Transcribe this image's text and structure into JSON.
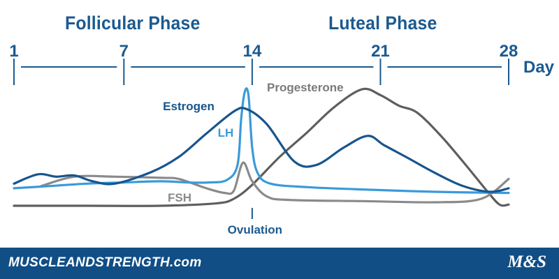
{
  "header": {
    "phase_left": "Follicular Phase",
    "phase_right": "Luteal Phase"
  },
  "chart_data": {
    "type": "line",
    "title": "",
    "xlabel": "Day",
    "ylabel": "",
    "xlim": [
      1,
      28
    ],
    "x_ticks": [
      1,
      7,
      14,
      21,
      28
    ],
    "grid": false,
    "legend": "none (series labeled directly on curves)",
    "series": [
      {
        "name": "Estrogen",
        "color": "#17558e",
        "points": [
          [
            1,
            0.19
          ],
          [
            2.3,
            0.27
          ],
          [
            3.3,
            0.25
          ],
          [
            4.3,
            0.26
          ],
          [
            5.3,
            0.21
          ],
          [
            6.5,
            0.19
          ],
          [
            8.5,
            0.29
          ],
          [
            10,
            0.42
          ],
          [
            11.5,
            0.62
          ],
          [
            13,
            0.81
          ],
          [
            13.7,
            0.83
          ],
          [
            14.8,
            0.7
          ],
          [
            16.3,
            0.38
          ],
          [
            17.5,
            0.35
          ],
          [
            19,
            0.5
          ],
          [
            20.3,
            0.6
          ],
          [
            21.2,
            0.52
          ],
          [
            22.5,
            0.41
          ],
          [
            24,
            0.28
          ],
          [
            25.5,
            0.17
          ],
          [
            27,
            0.12
          ],
          [
            28,
            0.15
          ]
        ]
      },
      {
        "name": "LH",
        "color": "#3a9ad9",
        "points": [
          [
            1,
            0.15
          ],
          [
            3,
            0.17
          ],
          [
            5,
            0.19
          ],
          [
            7,
            0.2
          ],
          [
            9,
            0.21
          ],
          [
            10.5,
            0.2
          ],
          [
            11.6,
            0.2
          ],
          [
            12.6,
            0.22
          ],
          [
            13.2,
            0.35
          ],
          [
            13.4,
            0.75
          ],
          [
            13.6,
            0.98
          ],
          [
            13.8,
            0.95
          ],
          [
            14,
            0.5
          ],
          [
            14.3,
            0.28
          ],
          [
            15,
            0.19
          ],
          [
            17,
            0.16
          ],
          [
            20,
            0.14
          ],
          [
            24,
            0.12
          ],
          [
            28,
            0.11
          ]
        ]
      },
      {
        "name": "FSH",
        "color": "#8a8a8a",
        "points": [
          [
            2.5,
            0.17
          ],
          [
            4.3,
            0.25
          ],
          [
            6.5,
            0.25
          ],
          [
            9,
            0.24
          ],
          [
            10,
            0.23
          ],
          [
            11.5,
            0.15
          ],
          [
            12.5,
            0.11
          ],
          [
            13,
            0.13
          ],
          [
            13.5,
            0.37
          ],
          [
            14,
            0.21
          ],
          [
            14.8,
            0.08
          ],
          [
            16,
            0.05
          ],
          [
            20,
            0.04
          ],
          [
            24,
            0.03
          ],
          [
            26.5,
            0.06
          ],
          [
            28,
            0.23
          ]
        ]
      },
      {
        "name": "Progesterone",
        "color": "#5e5e5e",
        "points": [
          [
            1,
            0
          ],
          [
            5,
            0
          ],
          [
            9,
            0
          ],
          [
            12,
            0.02
          ],
          [
            13,
            0.06
          ],
          [
            14,
            0.18
          ],
          [
            15.5,
            0.42
          ],
          [
            17,
            0.63
          ],
          [
            18.5,
            0.85
          ],
          [
            20,
            1.0
          ],
          [
            21,
            0.95
          ],
          [
            22,
            0.86
          ],
          [
            23,
            0.8
          ],
          [
            24.3,
            0.6
          ],
          [
            25.5,
            0.38
          ],
          [
            26.8,
            0.13
          ],
          [
            27.5,
            0.01
          ],
          [
            28,
            0.01
          ]
        ]
      }
    ],
    "annotations": [
      "Ovulation"
    ],
    "day_label": "Day"
  },
  "footer": {
    "site": "MUSCLEANDSTRENGTH.com",
    "logo": "M&S"
  }
}
